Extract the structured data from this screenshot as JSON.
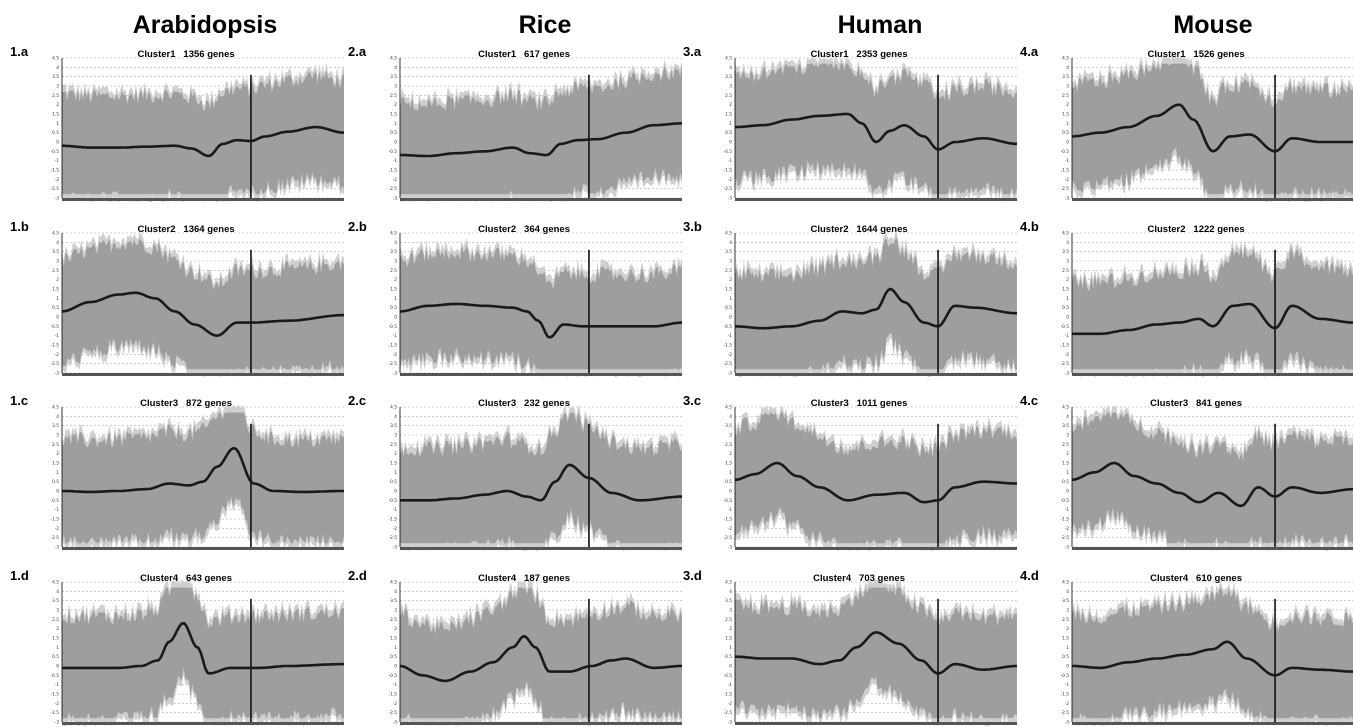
{
  "colors": {
    "band": "#9e9e9e",
    "band_light": "#cfcfcf",
    "mean_line": "#1a1a1a",
    "grid": "#9a9a9a",
    "marker": "#111111"
  },
  "species": [
    "Arabidopsis",
    "Rice",
    "Human",
    "Mouse"
  ],
  "chart_data": [
    {
      "type": "line",
      "panel": "1.a",
      "species": "Arabidopsis",
      "title": "Cluster1   1356 genes",
      "ylim": [
        -3,
        4.5
      ],
      "yticks": [
        "4.5",
        "4",
        "3.5",
        "3",
        "2.5",
        "2",
        "1.5",
        "1",
        "0.5",
        "0",
        "-0.5",
        "-1",
        "-1.5",
        "-2",
        "-2.5",
        "-3"
      ],
      "band_spread": 2.3,
      "marker_x": 0.67,
      "series": [
        {
          "x": [
            0,
            0.1,
            0.2,
            0.3,
            0.4,
            0.46,
            0.52,
            0.57,
            0.62,
            0.67,
            0.72,
            0.8,
            0.9,
            1
          ],
          "values": [
            -0.2,
            -0.3,
            -0.3,
            -0.25,
            -0.2,
            -0.35,
            -0.75,
            -0.1,
            0.1,
            0.05,
            0.3,
            0.55,
            0.8,
            0.5
          ]
        }
      ]
    },
    {
      "type": "line",
      "panel": "1.b",
      "species": "Arabidopsis",
      "title": "Cluster2   1364 genes",
      "ylim": [
        -3,
        4.5
      ],
      "yticks": [
        "4.5",
        "4",
        "3.5",
        "3",
        "2.5",
        "2",
        "1.5",
        "1",
        "0.5",
        "0",
        "-0.5",
        "-1",
        "-1.5",
        "-2",
        "-2.5",
        "-3"
      ],
      "band_spread": 2.3,
      "marker_x": 0.67,
      "series": [
        {
          "x": [
            0,
            0.1,
            0.2,
            0.26,
            0.33,
            0.4,
            0.47,
            0.55,
            0.62,
            0.67,
            0.8,
            1
          ],
          "values": [
            0.3,
            0.8,
            1.2,
            1.3,
            1.0,
            0.3,
            -0.4,
            -1.0,
            -0.3,
            -0.3,
            -0.2,
            0.1
          ]
        }
      ]
    },
    {
      "type": "line",
      "panel": "1.c",
      "species": "Arabidopsis",
      "title": "Cluster3   872 genes",
      "ylim": [
        -3,
        4.5
      ],
      "yticks": [
        "4.5",
        "4",
        "3.5",
        "3",
        "2.5",
        "2",
        "1.5",
        "1",
        "0.5",
        "0",
        "-0.5",
        "-1",
        "-1.5",
        "-2",
        "-2.5",
        "-3"
      ],
      "band_spread": 2.3,
      "marker_x": 0.67,
      "series": [
        {
          "x": [
            0,
            0.1,
            0.2,
            0.3,
            0.38,
            0.45,
            0.5,
            0.55,
            0.61,
            0.68,
            0.75,
            0.85,
            1
          ],
          "values": [
            0,
            -0.05,
            0,
            0.1,
            0.4,
            0.3,
            0.5,
            1.3,
            2.3,
            0.4,
            0,
            -0.05,
            0
          ]
        }
      ]
    },
    {
      "type": "line",
      "panel": "1.d",
      "species": "Arabidopsis",
      "title": "Cluster4   643 genes",
      "ylim": [
        -3,
        4.5
      ],
      "yticks": [
        "4.5",
        "4",
        "3.5",
        "3",
        "2.5",
        "2",
        "1.5",
        "1",
        "0.5",
        "0",
        "-0.5",
        "-1",
        "-1.5",
        "-2",
        "-2.5",
        "-3"
      ],
      "band_spread": 2.3,
      "marker_x": 0.67,
      "series": [
        {
          "x": [
            0,
            0.1,
            0.2,
            0.28,
            0.34,
            0.38,
            0.43,
            0.48,
            0.52,
            0.6,
            0.7,
            0.8,
            1
          ],
          "values": [
            -0.1,
            -0.1,
            -0.1,
            0,
            0.3,
            1.3,
            2.3,
            1.0,
            -0.4,
            -0.1,
            -0.1,
            0,
            0.1
          ]
        }
      ]
    },
    {
      "type": "line",
      "panel": "2.a",
      "species": "Rice",
      "title": "Cluster1   617 genes",
      "ylim": [
        -3,
        4.5
      ],
      "yticks": [
        "4.5",
        "4",
        "3.5",
        "3",
        "2.5",
        "2",
        "1.5",
        "1",
        "0.5",
        "0",
        "-0.5",
        "-1",
        "-1.5",
        "-2",
        "-2.5",
        "-3"
      ],
      "band_spread": 2.3,
      "marker_x": 0.67,
      "series": [
        {
          "x": [
            0,
            0.1,
            0.2,
            0.3,
            0.4,
            0.46,
            0.52,
            0.57,
            0.63,
            0.7,
            0.8,
            0.9,
            1
          ],
          "values": [
            -0.7,
            -0.75,
            -0.6,
            -0.5,
            -0.3,
            -0.6,
            -0.7,
            -0.1,
            0.1,
            0.15,
            0.5,
            0.9,
            1.0
          ]
        }
      ]
    },
    {
      "type": "line",
      "panel": "2.b",
      "species": "Rice",
      "title": "Cluster2   364 genes",
      "ylim": [
        -3,
        4.5
      ],
      "yticks": [
        "4.5",
        "4",
        "3.5",
        "3",
        "2.5",
        "2",
        "1.5",
        "1",
        "0.5",
        "0",
        "-0.5",
        "-1",
        "-1.5",
        "-2",
        "-2.5",
        "-3"
      ],
      "band_spread": 2.3,
      "marker_x": 0.67,
      "series": [
        {
          "x": [
            0,
            0.1,
            0.2,
            0.3,
            0.4,
            0.45,
            0.49,
            0.53,
            0.58,
            0.65,
            0.75,
            0.9,
            1
          ],
          "values": [
            0.3,
            0.6,
            0.7,
            0.6,
            0.5,
            0.3,
            -0.2,
            -1.1,
            -0.4,
            -0.5,
            -0.5,
            -0.5,
            -0.3
          ]
        }
      ]
    },
    {
      "type": "line",
      "panel": "2.c",
      "species": "Rice",
      "title": "Cluster3   232 genes",
      "ylim": [
        -3,
        4.5
      ],
      "yticks": [
        "4.5",
        "4",
        "3.5",
        "3",
        "2.5",
        "2",
        "1.5",
        "1",
        "0.5",
        "0",
        "-0.5",
        "-1",
        "-1.5",
        "-2",
        "-2.5",
        "-3"
      ],
      "band_spread": 2.3,
      "marker_x": 0.67,
      "series": [
        {
          "x": [
            0,
            0.1,
            0.2,
            0.3,
            0.38,
            0.45,
            0.5,
            0.55,
            0.6,
            0.67,
            0.75,
            0.85,
            1
          ],
          "values": [
            -0.5,
            -0.5,
            -0.4,
            -0.2,
            0,
            -0.3,
            -0.5,
            0.5,
            1.4,
            0.7,
            -0.1,
            -0.5,
            -0.3
          ]
        }
      ]
    },
    {
      "type": "line",
      "panel": "2.d",
      "species": "Rice",
      "title": "Cluster4   187 genes",
      "ylim": [
        -3,
        4.5
      ],
      "yticks": [
        "4.5",
        "4",
        "3.5",
        "3",
        "2.5",
        "2",
        "1.5",
        "1",
        "0.5",
        "0",
        "-0.5",
        "-1",
        "-1.5",
        "-2",
        "-2.5",
        "-3"
      ],
      "band_spread": 2.3,
      "marker_x": 0.67,
      "series": [
        {
          "x": [
            0,
            0.08,
            0.16,
            0.25,
            0.33,
            0.4,
            0.44,
            0.48,
            0.53,
            0.6,
            0.68,
            0.75,
            0.8,
            0.9,
            1
          ],
          "values": [
            0,
            -0.5,
            -0.8,
            -0.3,
            0.2,
            1.0,
            1.6,
            1.0,
            -0.3,
            -0.3,
            0,
            0.3,
            0.4,
            -0.1,
            0
          ]
        }
      ]
    },
    {
      "type": "line",
      "panel": "3.a",
      "species": "Human",
      "title": "Cluster1   2353 genes",
      "ylim": [
        -3,
        4.5
      ],
      "yticks": [
        "4.5",
        "4",
        "3.5",
        "3",
        "2.5",
        "2",
        "1.5",
        "1",
        "0.5",
        "0",
        "-0.5",
        "-1",
        "-1.5",
        "-2",
        "-2.5",
        "-3"
      ],
      "band_spread": 2.3,
      "marker_x": 0.72,
      "series": [
        {
          "x": [
            0,
            0.1,
            0.2,
            0.3,
            0.4,
            0.45,
            0.5,
            0.55,
            0.6,
            0.67,
            0.72,
            0.78,
            0.88,
            1
          ],
          "values": [
            0.8,
            0.9,
            1.2,
            1.4,
            1.5,
            1.0,
            0,
            0.6,
            0.9,
            0.3,
            -0.4,
            0,
            0.2,
            -0.1
          ]
        }
      ]
    },
    {
      "type": "line",
      "panel": "3.b",
      "species": "Human",
      "title": "Cluster2   1644 genes",
      "ylim": [
        -3,
        4.5
      ],
      "yticks": [
        "4.5",
        "4",
        "3.5",
        "3",
        "2.5",
        "2",
        "1.5",
        "1",
        "0.5",
        "0",
        "-0.5",
        "-1",
        "-1.5",
        "-2",
        "-2.5",
        "-3"
      ],
      "band_spread": 2.3,
      "marker_x": 0.72,
      "series": [
        {
          "x": [
            0,
            0.1,
            0.2,
            0.3,
            0.38,
            0.45,
            0.5,
            0.55,
            0.6,
            0.67,
            0.72,
            0.78,
            0.85,
            1
          ],
          "values": [
            -0.5,
            -0.6,
            -0.5,
            -0.2,
            0.3,
            0.2,
            0.4,
            1.5,
            0.8,
            -0.3,
            -0.5,
            0.6,
            0.5,
            0.2
          ]
        }
      ]
    },
    {
      "type": "line",
      "panel": "3.c",
      "species": "Human",
      "title": "Cluster3   1011 genes",
      "ylim": [
        -3,
        4.5
      ],
      "yticks": [
        "4.5",
        "4",
        "3.5",
        "3",
        "2.5",
        "2",
        "1.5",
        "1",
        "0.5",
        "0",
        "-0.5",
        "-1",
        "-1.5",
        "-2",
        "-2.5",
        "-3"
      ],
      "band_spread": 2.3,
      "marker_x": 0.72,
      "series": [
        {
          "x": [
            0,
            0.07,
            0.15,
            0.22,
            0.3,
            0.4,
            0.5,
            0.6,
            0.67,
            0.72,
            0.78,
            0.88,
            1
          ],
          "values": [
            0.6,
            0.9,
            1.5,
            0.8,
            0.2,
            -0.5,
            -0.2,
            -0.1,
            -0.6,
            -0.5,
            0.2,
            0.5,
            0.4
          ]
        }
      ]
    },
    {
      "type": "line",
      "panel": "3.d",
      "species": "Human",
      "title": "Cluster4   703 genes",
      "ylim": [
        -3,
        4.5
      ],
      "yticks": [
        "4.5",
        "4",
        "3.5",
        "3",
        "2.5",
        "2",
        "1.5",
        "1",
        "0.5",
        "0",
        "-0.5",
        "-1",
        "-1.5",
        "-2",
        "-2.5",
        "-3"
      ],
      "band_spread": 2.3,
      "marker_x": 0.72,
      "series": [
        {
          "x": [
            0,
            0.1,
            0.2,
            0.3,
            0.37,
            0.43,
            0.5,
            0.58,
            0.66,
            0.72,
            0.78,
            0.88,
            1
          ],
          "values": [
            0.5,
            0.4,
            0.4,
            0.1,
            0.3,
            1.0,
            1.8,
            1.2,
            0.3,
            -0.4,
            0.1,
            -0.2,
            0
          ]
        }
      ]
    },
    {
      "type": "line",
      "panel": "4.a",
      "species": "Mouse",
      "title": "Cluster1   1526 genes",
      "ylim": [
        -3,
        4.5
      ],
      "yticks": [
        "4.5",
        "4",
        "3.5",
        "3",
        "2.5",
        "2",
        "1.5",
        "1",
        "0.5",
        "0",
        "-0.5",
        "-1",
        "-1.5",
        "-2",
        "-2.5",
        "-3"
      ],
      "band_spread": 2.3,
      "marker_x": 0.72,
      "series": [
        {
          "x": [
            0,
            0.1,
            0.2,
            0.3,
            0.38,
            0.43,
            0.5,
            0.56,
            0.63,
            0.72,
            0.78,
            0.88,
            1
          ],
          "values": [
            0.3,
            0.5,
            0.8,
            1.4,
            2.0,
            1.2,
            -0.5,
            0.3,
            0.4,
            -0.5,
            0.2,
            0,
            0
          ]
        }
      ]
    },
    {
      "type": "line",
      "panel": "4.b",
      "species": "Mouse",
      "title": "Cluster2   1222 genes",
      "ylim": [
        -3,
        4.5
      ],
      "yticks": [
        "4.5",
        "4",
        "3.5",
        "3",
        "2.5",
        "2",
        "1.5",
        "1",
        "0.5",
        "0",
        "-0.5",
        "-1",
        "-1.5",
        "-2",
        "-2.5",
        "-3"
      ],
      "band_spread": 2.3,
      "marker_x": 0.72,
      "series": [
        {
          "x": [
            0,
            0.1,
            0.2,
            0.3,
            0.38,
            0.45,
            0.5,
            0.57,
            0.63,
            0.72,
            0.78,
            0.88,
            1
          ],
          "values": [
            -0.9,
            -0.9,
            -0.7,
            -0.4,
            -0.3,
            -0.1,
            -0.5,
            0.6,
            0.7,
            -0.6,
            0.6,
            -0.1,
            -0.3
          ]
        }
      ]
    },
    {
      "type": "line",
      "panel": "4.c",
      "species": "Mouse",
      "title": "Cluster3   841 genes",
      "ylim": [
        -3,
        4.5
      ],
      "yticks": [
        "4.5",
        "4",
        "3.5",
        "3",
        "2.5",
        "2",
        "1.5",
        "1",
        "0.5",
        "0",
        "-0.5",
        "-1",
        "-1.5",
        "-2",
        "-2.5",
        "-3"
      ],
      "band_spread": 2.3,
      "marker_x": 0.72,
      "series": [
        {
          "x": [
            0,
            0.08,
            0.15,
            0.22,
            0.3,
            0.38,
            0.45,
            0.52,
            0.6,
            0.66,
            0.72,
            0.78,
            0.88,
            1
          ],
          "values": [
            0.6,
            1.0,
            1.5,
            0.8,
            0.4,
            -0.1,
            -0.6,
            -0.1,
            -0.8,
            0.2,
            -0.3,
            0.2,
            -0.1,
            0.1
          ]
        }
      ]
    },
    {
      "type": "line",
      "panel": "4.d",
      "species": "Mouse",
      "title": "Cluster4   610 genes",
      "ylim": [
        -3,
        4.5
      ],
      "yticks": [
        "4.5",
        "4",
        "3.5",
        "3",
        "2.5",
        "2",
        "1.5",
        "1",
        "0.5",
        "0",
        "-0.5",
        "-1",
        "-1.5",
        "-2",
        "-2.5",
        "-3"
      ],
      "band_spread": 2.3,
      "marker_x": 0.72,
      "series": [
        {
          "x": [
            0,
            0.1,
            0.2,
            0.3,
            0.4,
            0.5,
            0.55,
            0.62,
            0.72,
            0.78,
            0.88,
            1
          ],
          "values": [
            0,
            -0.1,
            0.2,
            0.4,
            0.6,
            0.9,
            1.3,
            0.4,
            -0.5,
            -0.1,
            -0.2,
            -0.3
          ]
        }
      ]
    }
  ]
}
